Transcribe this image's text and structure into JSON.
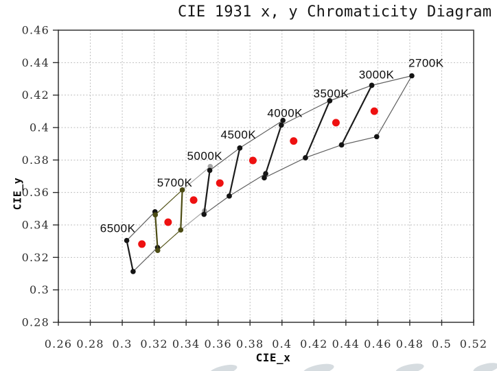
{
  "chart_data": {
    "type": "scatter",
    "title": "CIE 1931 x, y Chromaticity Diagram",
    "xlabel": "CIE_x",
    "ylabel": "CIE_y",
    "xlim": [
      0.26,
      0.52
    ],
    "ylim": [
      0.28,
      0.46
    ],
    "grid": "dashed",
    "x_ticks": [
      {
        "v": 0.26,
        "label": "0.26"
      },
      {
        "v": 0.28,
        "label": "0.28"
      },
      {
        "v": 0.3,
        "label": "0.3"
      },
      {
        "v": 0.32,
        "label": "0.32"
      },
      {
        "v": 0.34,
        "label": "0.34"
      },
      {
        "v": 0.36,
        "label": "0.36"
      },
      {
        "v": 0.38,
        "label": "0.38"
      },
      {
        "v": 0.4,
        "label": "0.4"
      },
      {
        "v": 0.42,
        "label": "0.42"
      },
      {
        "v": 0.44,
        "label": "0.44"
      },
      {
        "v": 0.46,
        "label": "0.46"
      },
      {
        "v": 0.48,
        "label": "0.48"
      },
      {
        "v": 0.5,
        "label": "0.5"
      },
      {
        "v": 0.52,
        "label": "0.52"
      }
    ],
    "y_ticks": [
      {
        "v": 0.46,
        "label": "0.46"
      },
      {
        "v": 0.44,
        "label": "0.44"
      },
      {
        "v": 0.42,
        "label": "0.42"
      },
      {
        "v": 0.4,
        "label": "0.4"
      },
      {
        "v": 0.38,
        "label": "0.38"
      },
      {
        "v": 0.36,
        "label": "0.36"
      },
      {
        "v": 0.34,
        "label": "0.34"
      },
      {
        "v": 0.32,
        "label": "0.32"
      },
      {
        "v": 0.3,
        "label": "0.3"
      },
      {
        "v": 0.28,
        "label": "0.28"
      }
    ],
    "colors": {
      "frame": "#3f3f3f",
      "grid": "#bdbdbd",
      "tick": "#2f2f2f",
      "center_dot": "#ee1111",
      "black_bin": "#141414",
      "gray_bin": "#a6a6a6",
      "olive_bin": "#4c4c14",
      "chain_line": "#5f5f5f"
    },
    "bins": [
      {
        "label": "5000K",
        "center": [
          0.3447,
          0.3553
        ],
        "quad": [
          [
            0.3551,
            0.376
          ],
          [
            0.3376,
            0.3616
          ],
          [
            0.3366,
            0.3369
          ],
          [
            0.3515,
            0.3487
          ]
        ],
        "line_color": "#a6a6a6",
        "dot_color": "#a6a6a6",
        "edge_color": "#a6a6a6",
        "thick_edges": [
          [
            0,
            3
          ]
        ],
        "label_vertex": 0,
        "label_dx": -8,
        "label_dy": -10,
        "label_anchor": "middle"
      },
      {
        "label": "6500K",
        "center": [
          0.3123,
          0.3282
        ],
        "quad": [
          [
            0.3205,
            0.3481
          ],
          [
            0.3028,
            0.3304
          ],
          [
            0.3068,
            0.3113
          ],
          [
            0.3221,
            0.3261
          ]
        ],
        "line_color": "#5f5f5f",
        "dot_color": "#141414",
        "edge_color": "#1c1c1c",
        "thick_edges": [
          [
            1,
            2
          ]
        ],
        "label_vertex": 1,
        "label_dx": -13,
        "label_dy": -12,
        "label_anchor": "middle"
      },
      {
        "label": "4500K",
        "center": [
          0.3611,
          0.3658
        ],
        "quad": [
          [
            0.3736,
            0.3874
          ],
          [
            0.3548,
            0.3736
          ],
          [
            0.3512,
            0.3465
          ],
          [
            0.367,
            0.3578
          ]
        ],
        "line_color": "#5f5f5f",
        "dot_color": "#141414",
        "edge_color": "#1c1c1c",
        "thick_edges": [
          [
            1,
            2
          ]
        ],
        "label_vertex": 0,
        "label_dx": -2,
        "label_dy": -14,
        "label_anchor": "middle"
      },
      {
        "label": "4000K",
        "center": [
          0.3818,
          0.3797
        ],
        "quad": [
          [
            0.4006,
            0.4044
          ],
          [
            0.3736,
            0.3874
          ],
          [
            0.367,
            0.3578
          ],
          [
            0.3898,
            0.3716
          ]
        ],
        "line_color": "#5f5f5f",
        "dot_color": "#141414",
        "edge_color": "#1c1c1c",
        "thick_edges": [
          [
            1,
            2
          ]
        ],
        "label_vertex": 0,
        "label_dx": 3,
        "label_dy": -5,
        "label_anchor": "middle"
      },
      {
        "label": "3500K",
        "center": [
          0.4073,
          0.3917
        ],
        "quad": [
          [
            0.4299,
            0.4165
          ],
          [
            0.3996,
            0.4015
          ],
          [
            0.3889,
            0.369
          ],
          [
            0.4147,
            0.3814
          ]
        ],
        "line_color": "#5f5f5f",
        "dot_color": "#141414",
        "edge_color": "#1c1c1c",
        "thick_edges": [
          [
            1,
            2
          ]
        ],
        "label_vertex": 0,
        "label_dx": 2,
        "label_dy": -5,
        "label_anchor": "middle"
      },
      {
        "label": "3000K",
        "center": [
          0.4338,
          0.403
        ],
        "quad": [
          [
            0.4562,
            0.426
          ],
          [
            0.4299,
            0.4165
          ],
          [
            0.4147,
            0.3814
          ],
          [
            0.4373,
            0.3893
          ]
        ],
        "line_color": "#5f5f5f",
        "dot_color": "#141414",
        "edge_color": "#1c1c1c",
        "thick_edges": [
          [
            1,
            2
          ]
        ],
        "label_vertex": 0,
        "label_dx": 7,
        "label_dy": -10,
        "label_anchor": "middle"
      },
      {
        "label": "2700K",
        "center": [
          0.4578,
          0.4101
        ],
        "quad": [
          [
            0.4813,
            0.4319
          ],
          [
            0.4562,
            0.426
          ],
          [
            0.4373,
            0.3893
          ],
          [
            0.4593,
            0.3944
          ]
        ],
        "line_color": "#5f5f5f",
        "dot_color": "#141414",
        "edge_color": "#1c1c1c",
        "thick_edges": [
          [
            1,
            2
          ]
        ],
        "label_vertex": 0,
        "label_dx": -5,
        "label_dy": -13,
        "label_anchor": "start"
      },
      {
        "label": "5700K",
        "center": [
          0.3287,
          0.3417
        ],
        "quad": [
          [
            0.3376,
            0.3616
          ],
          [
            0.3207,
            0.3462
          ],
          [
            0.3222,
            0.3243
          ],
          [
            0.3366,
            0.3369
          ]
        ],
        "line_color": "#55551a",
        "dot_color": "#4c4c14",
        "edge_color": "#4c4c14",
        "thick_edges": [
          [
            1,
            2
          ],
          [
            0,
            3
          ]
        ],
        "label_vertex": 0,
        "label_dx": -11,
        "label_dy": -5,
        "label_anchor": "middle"
      }
    ]
  }
}
